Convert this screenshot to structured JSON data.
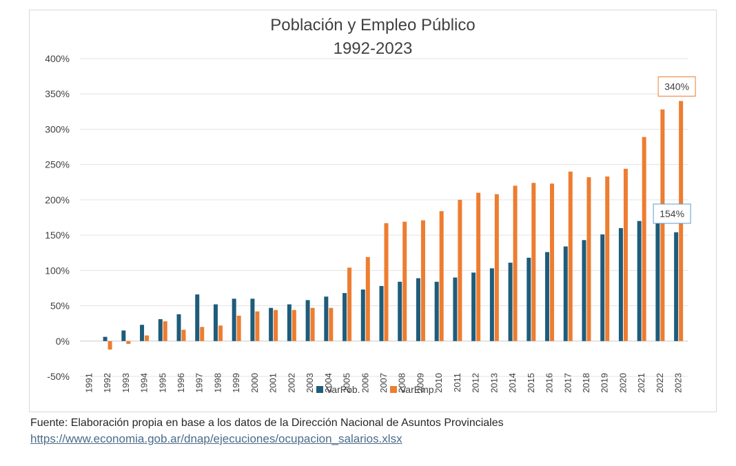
{
  "chart_data": {
    "type": "bar",
    "title": "Población y Empleo Público",
    "subtitle": "1992-2023",
    "categories": [
      "1991",
      "1992",
      "1993",
      "1994",
      "1995",
      "1996",
      "1997",
      "1998",
      "1999",
      "2000",
      "2001",
      "2002",
      "2003",
      "2004",
      "2005",
      "2006",
      "2007",
      "2008",
      "2009",
      "2010",
      "2011",
      "2012",
      "2013",
      "2014",
      "2015",
      "2016",
      "2017",
      "2018",
      "2019",
      "2020",
      "2021",
      "2022",
      "2023"
    ],
    "series": [
      {
        "name": "VarPob.",
        "color": "#1f5c7a",
        "values": [
          0,
          6,
          15,
          23,
          31,
          38,
          66,
          52,
          60,
          60,
          47,
          52,
          58,
          63,
          68,
          73,
          78,
          84,
          89,
          84,
          90,
          97,
          103,
          111,
          118,
          126,
          134,
          143,
          151,
          160,
          170,
          179,
          154
        ]
      },
      {
        "name": "VarEmp.",
        "color": "#ed7d31",
        "values": [
          0,
          -12,
          -4,
          8,
          28,
          16,
          20,
          22,
          36,
          42,
          44,
          44,
          47,
          47,
          104,
          119,
          167,
          169,
          171,
          184,
          200,
          210,
          208,
          220,
          224,
          223,
          240,
          232,
          233,
          244,
          289,
          328,
          340
        ]
      }
    ],
    "ylim": [
      -50,
      400
    ],
    "y_ticks": [
      "-50%",
      "0%",
      "50%",
      "100%",
      "150%",
      "200%",
      "250%",
      "300%",
      "350%",
      "400%"
    ],
    "y_tick_values": [
      -50,
      0,
      50,
      100,
      150,
      200,
      250,
      300,
      350,
      400
    ],
    "grid": true,
    "legend_position": "bottom",
    "callouts": [
      {
        "label": "340%",
        "series": "VarEmp.",
        "category": "2023",
        "border_color": "#ed7d31"
      },
      {
        "label": "154%",
        "series": "VarPob.",
        "category": "2023",
        "border_color": "#5b9bd5"
      }
    ]
  },
  "source": {
    "text": "Fuente: Elaboración propia en base a los datos de la Dirección Nacional de Asuntos Provinciales",
    "link": "https://www.economia.gob.ar/dnap/ejecuciones/ocupacion_salarios.xlsx"
  }
}
